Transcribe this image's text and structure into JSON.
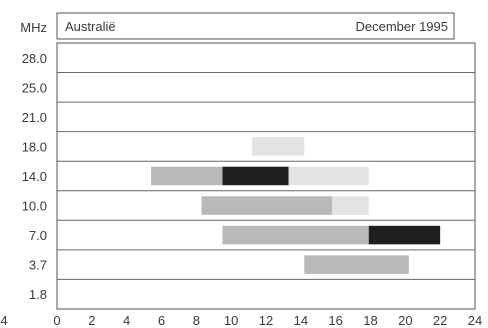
{
  "chart_data": {
    "type": "bar",
    "title_left": "Australië",
    "title_right": "December 1995",
    "ylabel": "MHz",
    "bands": [
      "28.0",
      "25.0",
      "21.0",
      "18.0",
      "14.0",
      "10.0",
      "7.0",
      "3.7",
      "1.8"
    ],
    "xlim": [
      0,
      24
    ],
    "x_ticks": [
      0,
      2,
      4,
      6,
      8,
      10,
      12,
      14,
      16,
      18,
      20,
      22,
      24
    ],
    "x_ticks_left_extra": "4",
    "grid": "horizontal lines between bands",
    "legend": "none",
    "shade_colors": {
      "light": "#e3e3e3",
      "medium": "#b9b9b9",
      "dark": "#1f1f1f"
    },
    "segments": [
      {
        "band": "18.0",
        "start": 11.2,
        "end": 14.2,
        "shade": "light"
      },
      {
        "band": "14.0",
        "start": 5.4,
        "end": 9.5,
        "shade": "medium"
      },
      {
        "band": "14.0",
        "start": 9.5,
        "end": 13.3,
        "shade": "dark"
      },
      {
        "band": "14.0",
        "start": 13.3,
        "end": 17.9,
        "shade": "light"
      },
      {
        "band": "10.0",
        "start": 8.3,
        "end": 15.8,
        "shade": "medium"
      },
      {
        "band": "10.0",
        "start": 15.8,
        "end": 17.9,
        "shade": "light"
      },
      {
        "band": "7.0",
        "start": 9.5,
        "end": 17.9,
        "shade": "medium"
      },
      {
        "band": "7.0",
        "start": 17.9,
        "end": 22.0,
        "shade": "dark"
      },
      {
        "band": "3.7",
        "start": 14.2,
        "end": 20.2,
        "shade": "medium"
      }
    ]
  }
}
